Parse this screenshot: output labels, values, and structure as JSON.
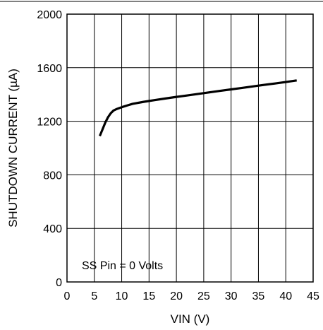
{
  "chart_data": {
    "type": "line",
    "title": "",
    "xlabel": "VIN (V)",
    "ylabel": "SHUTDOWN CURRENT (µA)",
    "xlim": [
      0,
      45
    ],
    "ylim": [
      0,
      2000
    ],
    "x_ticks": [
      0,
      5,
      10,
      15,
      20,
      25,
      30,
      35,
      40,
      45
    ],
    "y_ticks": [
      0,
      400,
      800,
      1200,
      1600,
      2000
    ],
    "grid": true,
    "legend": "none",
    "annotation": "SS Pin = 0 Volts",
    "series": [
      {
        "color": "#000000",
        "x": [
          6,
          6.5,
          7,
          7.5,
          8,
          8.5,
          9,
          10,
          11,
          12,
          14,
          16,
          18,
          20,
          22,
          25,
          28,
          30,
          32,
          35,
          38,
          40,
          42
        ],
        "y": [
          1090,
          1140,
          1190,
          1230,
          1260,
          1280,
          1290,
          1305,
          1318,
          1330,
          1345,
          1358,
          1370,
          1382,
          1393,
          1410,
          1427,
          1438,
          1449,
          1466,
          1482,
          1493,
          1505
        ]
      }
    ]
  }
}
